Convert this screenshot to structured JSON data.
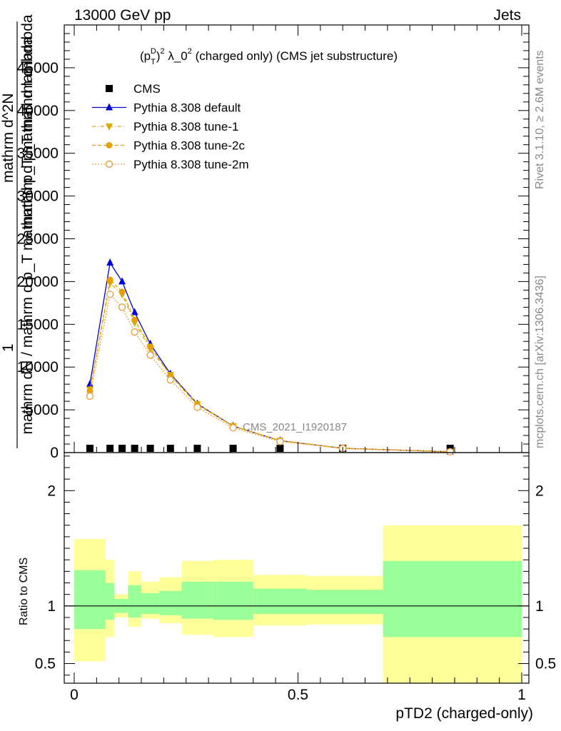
{
  "header": {
    "left": "13000 GeV pp",
    "right": "Jets"
  },
  "side": {
    "rivet": "Rivet 3.1.10, ≥ 2.6M events",
    "mcplots": "mcplots.cern.ch [arXiv:1306.3436]"
  },
  "chart_data": [
    {
      "type": "line",
      "title": "(p_T^D)^2 λ_0^2 (charged only) (CMS jet substructure)",
      "title_parts": {
        "a": "(p",
        "sub": "T",
        "sup1": "D",
        "b": ")",
        "sup2": "2",
        "c": " λ_0",
        "sup3": "2",
        "d": " (charged only) (CMS jet substructure)"
      },
      "ylabel_lines": [
        "1",
        "mathrm dN / mathrm d p_T mathrm d p_T mathrm d lambda",
        "mathrm d^2N",
        "mathrm d p_T mathrm d lambda"
      ],
      "xlim": [
        0,
        1
      ],
      "ylim": [
        0,
        50000
      ],
      "yticks": [
        0,
        5000,
        10000,
        15000,
        20000,
        25000,
        30000,
        35000,
        40000,
        45000
      ],
      "ytick_labels": [
        "0",
        "5000",
        "10000",
        "15000",
        "20000",
        "25000",
        "30000",
        "35000",
        "40000",
        "45000"
      ],
      "watermark": "CMS_2021_I1920187",
      "legend_position": "top-left",
      "series": [
        {
          "name": "CMS",
          "color": "#000000",
          "marker": "square",
          "x": [
            0.035,
            0.08,
            0.107,
            0.135,
            0.17,
            0.215,
            0.275,
            0.355,
            0.46,
            0.6,
            0.84
          ],
          "y": [
            0,
            0,
            0,
            0,
            0,
            0,
            0,
            0,
            0,
            0,
            0
          ]
        },
        {
          "name": "Pythia 8.308 default",
          "color": "#0000dd",
          "marker": "triangle",
          "dash": "",
          "x": [
            0.035,
            0.08,
            0.107,
            0.135,
            0.17,
            0.215,
            0.275,
            0.355,
            0.46,
            0.6,
            0.84
          ],
          "y": [
            8000,
            22200,
            20000,
            16400,
            12700,
            9200,
            5700,
            3100,
            1400,
            500,
            100
          ]
        },
        {
          "name": "Pythia 8.308 tune-1",
          "color": "#ddaa00",
          "marker": "triangle-down",
          "dash": "5,3,1,3",
          "x": [
            0.035,
            0.08,
            0.107,
            0.135,
            0.17,
            0.215,
            0.275,
            0.355,
            0.46,
            0.6,
            0.84
          ],
          "y": [
            7400,
            19800,
            18500,
            15200,
            12100,
            9100,
            5700,
            3100,
            1400,
            500,
            100
          ]
        },
        {
          "name": "Pythia 8.308 tune-2c",
          "color": "#e6a000",
          "marker": "circle",
          "dash": "5,3",
          "x": [
            0.035,
            0.08,
            0.107,
            0.135,
            0.17,
            0.215,
            0.275,
            0.355,
            0.46,
            0.6,
            0.84
          ],
          "y": [
            7200,
            20200,
            18800,
            15500,
            12400,
            9000,
            5600,
            3100,
            1400,
            500,
            100
          ]
        },
        {
          "name": "Pythia 8.308 tune-2m",
          "color": "#e6a040",
          "marker": "circle-open",
          "dash": "2,2",
          "x": [
            0.035,
            0.08,
            0.107,
            0.135,
            0.17,
            0.215,
            0.275,
            0.355,
            0.46,
            0.6,
            0.84
          ],
          "y": [
            6600,
            18500,
            17000,
            14100,
            11400,
            8500,
            5300,
            2900,
            1300,
            500,
            100
          ]
        }
      ]
    },
    {
      "type": "area",
      "ylabel": "Ratio to CMS",
      "xlabel": "pTD2 (charged-only)",
      "xlim": [
        0,
        1
      ],
      "ylim": [
        0.33,
        2.33
      ],
      "xticks": [
        0,
        0.5,
        1
      ],
      "xtick_labels": [
        "0",
        "0.5",
        "1"
      ],
      "yticks": [
        0.5,
        1,
        2
      ],
      "ytick_labels": [
        "0.5",
        "1",
        "2"
      ],
      "band_colors": {
        "outer": "#ffff99",
        "inner": "#99ff99"
      },
      "bins": [
        {
          "x0": 0.0,
          "x1": 0.07,
          "outer": [
            0.52,
            1.58
          ],
          "inner": [
            0.8,
            1.31
          ]
        },
        {
          "x0": 0.07,
          "x1": 0.09,
          "outer": [
            0.73,
            1.4
          ],
          "inner": [
            0.88,
            1.2
          ]
        },
        {
          "x0": 0.09,
          "x1": 0.12,
          "outer": [
            0.9,
            1.1
          ],
          "inner": [
            0.94,
            1.06
          ]
        },
        {
          "x0": 0.12,
          "x1": 0.15,
          "outer": [
            0.82,
            1.3
          ],
          "inner": [
            0.9,
            1.18
          ]
        },
        {
          "x0": 0.15,
          "x1": 0.19,
          "outer": [
            0.89,
            1.21
          ],
          "inner": [
            0.93,
            1.11
          ]
        },
        {
          "x0": 0.19,
          "x1": 0.24,
          "outer": [
            0.85,
            1.25
          ],
          "inner": [
            0.92,
            1.13
          ]
        },
        {
          "x0": 0.24,
          "x1": 0.31,
          "outer": [
            0.75,
            1.39
          ],
          "inner": [
            0.89,
            1.21
          ]
        },
        {
          "x0": 0.31,
          "x1": 0.4,
          "outer": [
            0.73,
            1.4
          ],
          "inner": [
            0.88,
            1.21
          ]
        },
        {
          "x0": 0.4,
          "x1": 0.52,
          "outer": [
            0.83,
            1.27
          ],
          "inner": [
            0.93,
            1.15
          ]
        },
        {
          "x0": 0.52,
          "x1": 0.69,
          "outer": [
            0.84,
            1.26
          ],
          "inner": [
            0.93,
            1.14
          ]
        },
        {
          "x0": 0.69,
          "x1": 1.0,
          "outer": [
            0.33,
            1.7
          ],
          "inner": [
            0.73,
            1.39
          ]
        }
      ],
      "reference_line": 1
    }
  ]
}
